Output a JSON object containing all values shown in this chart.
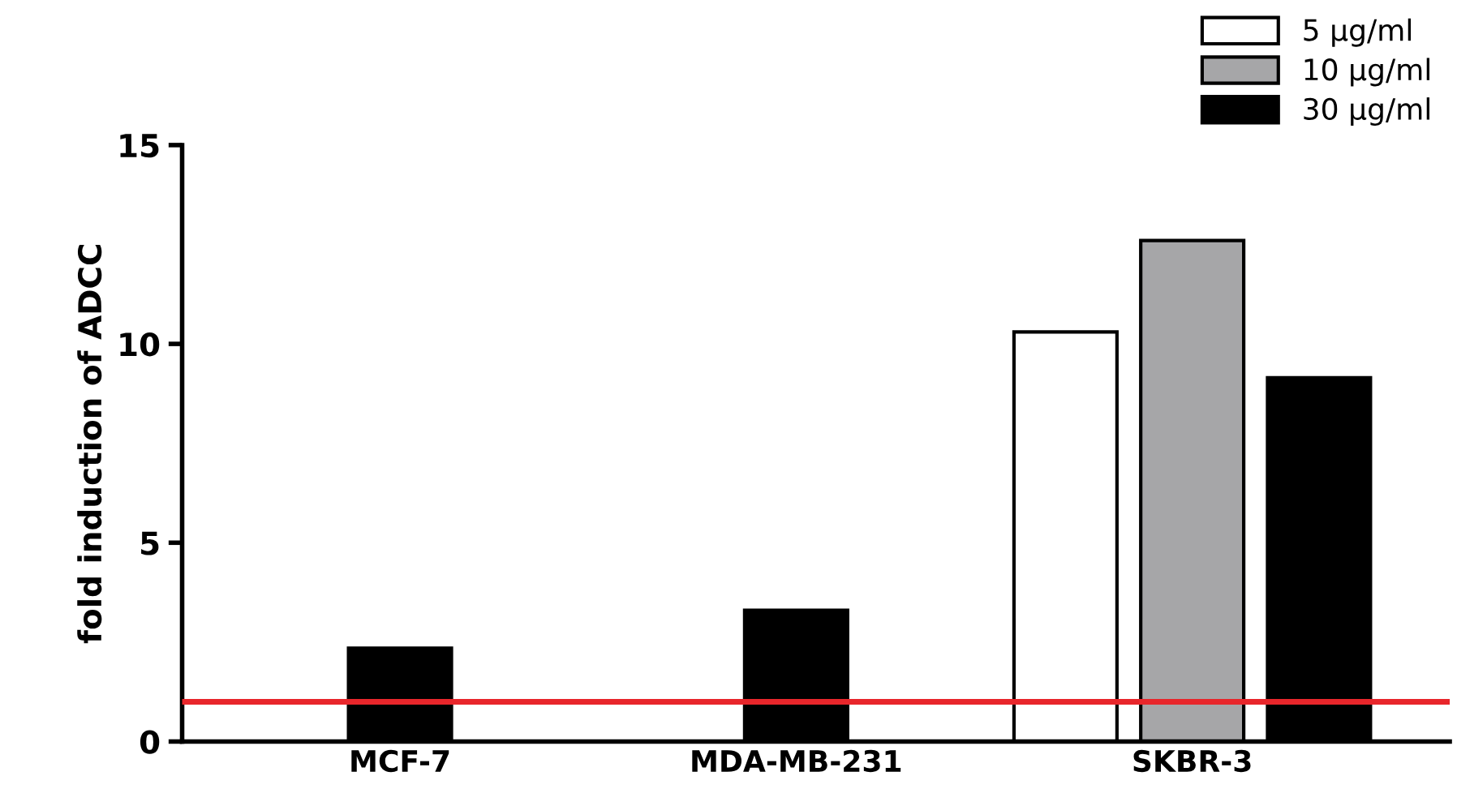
{
  "chart_data": {
    "type": "bar",
    "ylabel": "fold induction of ADCC",
    "categories": [
      "MCF-7",
      "MDA-MB-231",
      "SKBR-3"
    ],
    "series": [
      {
        "name": "5 µg/ml",
        "color": "#ffffff",
        "values": [
          null,
          null,
          10.3
        ]
      },
      {
        "name": "10 µg/ml",
        "color": "#a6a6a8",
        "values": [
          null,
          null,
          12.6
        ]
      },
      {
        "name": "30 µg/ml",
        "color": "#000000",
        "values": [
          2.35,
          3.3,
          9.15
        ]
      }
    ],
    "ylim": [
      0,
      15
    ],
    "yticks": [
      0,
      5,
      10,
      15
    ],
    "ref_lines": [
      {
        "axis": "y",
        "value": 1,
        "color": "#e8262b"
      }
    ],
    "legend": "top right",
    "grid": false
  }
}
